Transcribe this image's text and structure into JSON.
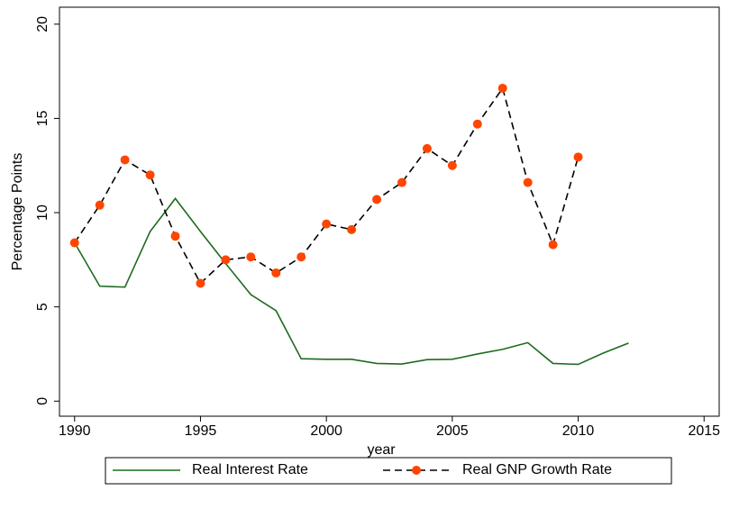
{
  "chart_data": {
    "type": "line",
    "x_label": "year",
    "y_label": "Percentage Points",
    "x": [
      1990,
      1991,
      1992,
      1993,
      1994,
      1995,
      1996,
      1997,
      1998,
      1999,
      2000,
      2001,
      2002,
      2003,
      2004,
      2005,
      2006,
      2007,
      2008,
      2009,
      2010,
      2011,
      2012
    ],
    "series": [
      {
        "name": "Real Interest Rate",
        "color": "#1e6b1e",
        "dashed": false,
        "markers": false,
        "values": [
          8.4,
          6.1,
          6.05,
          9.0,
          10.75,
          9.0,
          7.3,
          5.65,
          4.8,
          2.25,
          2.22,
          2.22,
          2.0,
          1.97,
          2.2,
          2.22,
          2.5,
          2.75,
          3.1,
          2.0,
          1.95,
          2.55,
          3.08
        ]
      },
      {
        "name": "Real GNP Growth Rate",
        "color": "#000000",
        "marker_color": "#ff4500",
        "dashed": true,
        "markers": true,
        "values": [
          8.4,
          10.4,
          12.8,
          12.0,
          8.75,
          6.25,
          7.5,
          7.65,
          6.8,
          7.65,
          9.4,
          9.1,
          10.7,
          11.6,
          13.4,
          12.5,
          14.7,
          16.6,
          11.6,
          8.3,
          12.95,
          null,
          null
        ]
      }
    ],
    "xlim": [
      1989.4,
      2015.6
    ],
    "xticks": [
      1990,
      1995,
      2000,
      2005,
      2010,
      2015
    ],
    "ylim": [
      -0.8,
      20.9
    ],
    "yticks": [
      0,
      5,
      10,
      15,
      20
    ],
    "grid": false,
    "legend": "bottom"
  }
}
